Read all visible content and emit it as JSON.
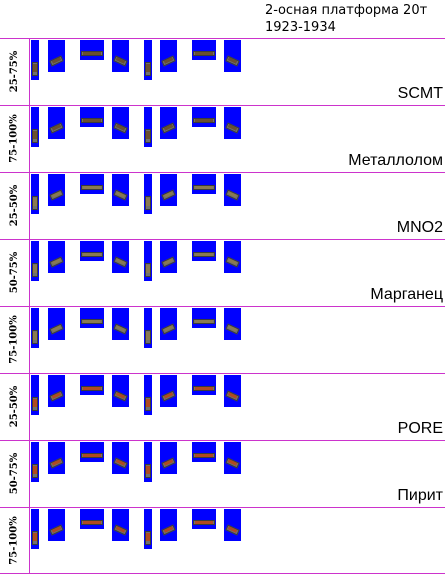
{
  "header": {
    "title_line1": "2-осная платформа 20т",
    "title_line2": "1923-1934"
  },
  "rows": [
    {
      "percent": "25-75%",
      "cargo": "SCMT",
      "load_color": "#6b4f2f"
    },
    {
      "percent": "75-100%",
      "cargo": "Металлолом",
      "load_color": "#6b4f2f"
    },
    {
      "percent": "25-50%",
      "cargo": "MNO2",
      "load_color": "#8a7a50"
    },
    {
      "percent": "50-75%",
      "cargo": "Марганец",
      "load_color": "#8a7a50"
    },
    {
      "percent": "75-100%",
      "cargo": "",
      "load_color": "#8a7a50"
    },
    {
      "percent": "25-50%",
      "cargo": "PORE",
      "load_color": "#b04a20"
    },
    {
      "percent": "50-75%",
      "cargo": "Пирит",
      "load_color": "#b04a20"
    },
    {
      "percent": "75-100%",
      "cargo": "",
      "load_color": "#b04a20"
    }
  ],
  "colors": {
    "grid": "#cc33cc",
    "sprite_bg": "#0000ff"
  }
}
